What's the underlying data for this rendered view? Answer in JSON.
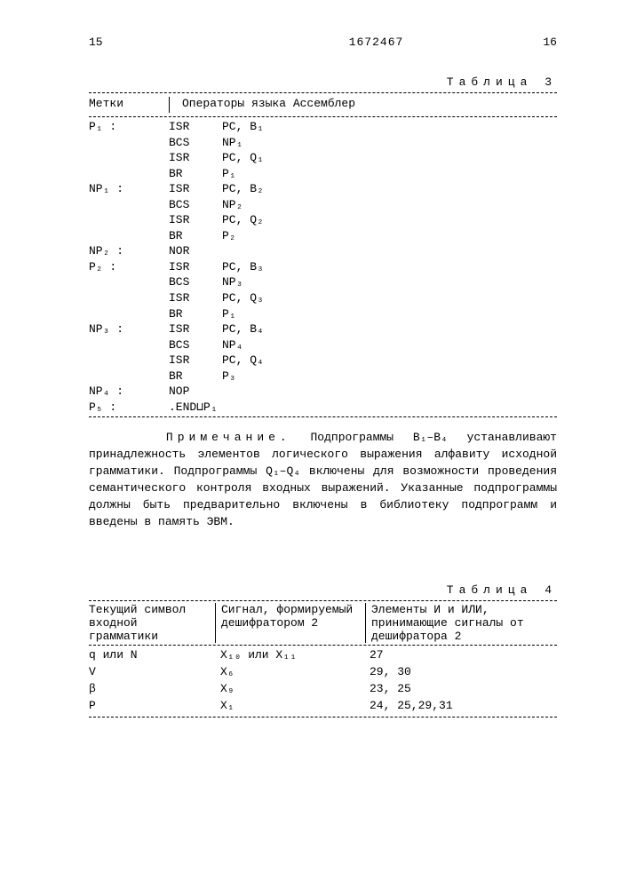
{
  "header": {
    "pageLeft": "15",
    "docNumber": "1672467",
    "pageRight": "16"
  },
  "table3": {
    "title": "Таблица 3",
    "colHeaders": {
      "labels": "Метки",
      "ops": "Операторы языка Ассемблер"
    },
    "rows": [
      {
        "label": "P₁ :",
        "op": "ISR",
        "arg": "PC, B₁"
      },
      {
        "label": "",
        "op": "BCS",
        "arg": "NP₁"
      },
      {
        "label": "",
        "op": "ISR",
        "arg": "PC, Q₁"
      },
      {
        "label": "",
        "op": "BR",
        "arg": "P₁"
      },
      {
        "label": "NP₁ :",
        "op": "ISR",
        "arg": "PC, B₂"
      },
      {
        "label": "",
        "op": "BCS",
        "arg": "NP₂"
      },
      {
        "label": "",
        "op": "ISR",
        "arg": "PC, Q₂"
      },
      {
        "label": "",
        "op": "BR",
        "arg": "P₂"
      },
      {
        "label": "NP₂ :",
        "op": "NOR",
        "arg": ""
      },
      {
        "label": "P₂ :",
        "op": "ISR",
        "arg": "PC, B₃"
      },
      {
        "label": "",
        "op": "BCS",
        "arg": "NP₃"
      },
      {
        "label": "",
        "op": "ISR",
        "arg": "PC, Q₃"
      },
      {
        "label": "",
        "op": "BR",
        "arg": "P₁"
      },
      {
        "label": "NP₃ :",
        "op": "ISR",
        "arg": "PC, B₄"
      },
      {
        "label": "",
        "op": "BCS",
        "arg": "NP₄"
      },
      {
        "label": "",
        "op": "ISR",
        "arg": "PC, Q₄"
      },
      {
        "label": "",
        "op": "BR",
        "arg": "P₃"
      },
      {
        "label": "NP₄ :",
        "op": "NOP",
        "arg": ""
      },
      {
        "label": "P₅ :",
        "op": ".END⊔P₁",
        "arg": ""
      }
    ]
  },
  "note": {
    "lead": "Примечание.",
    "body": "Подпрограммы B₁–B₄ устанавливают принадлежность элементов логического выражения алфавиту исходной грамматики. Подпрограммы Q₁–Q₄ включены для возможности проведения семантического контроля входных выражений. Указанные подпрограммы должны быть предварительно включены в библиотеку подпрограмм и введены в память ЭВМ."
  },
  "table4": {
    "title": "Таблица 4",
    "colHeaders": {
      "c1": "Текущий символ входной грамматики",
      "c2": "Сигнал, формируемый дешифратором 2",
      "c3": "Элементы И и ИЛИ, принимающие сигналы от дешифратора 2"
    },
    "rows": [
      {
        "c1": "q или N",
        "c2": "X₁₀ или X₁₁",
        "c3": "27"
      },
      {
        "c1": "V",
        "c2": "X₆",
        "c3": "29, 30"
      },
      {
        "c1": "β",
        "c2": "X₉",
        "c3": "23, 25"
      },
      {
        "c1": "P",
        "c2": "X₁",
        "c3": "24, 25,29,31"
      }
    ]
  },
  "style": {
    "fontFamily": "Courier New, monospace",
    "fontSizePt": 13,
    "textColor": "#000000",
    "background": "#ffffff",
    "letterSpacingTitle": 6,
    "lineHeight": 1.35
  }
}
